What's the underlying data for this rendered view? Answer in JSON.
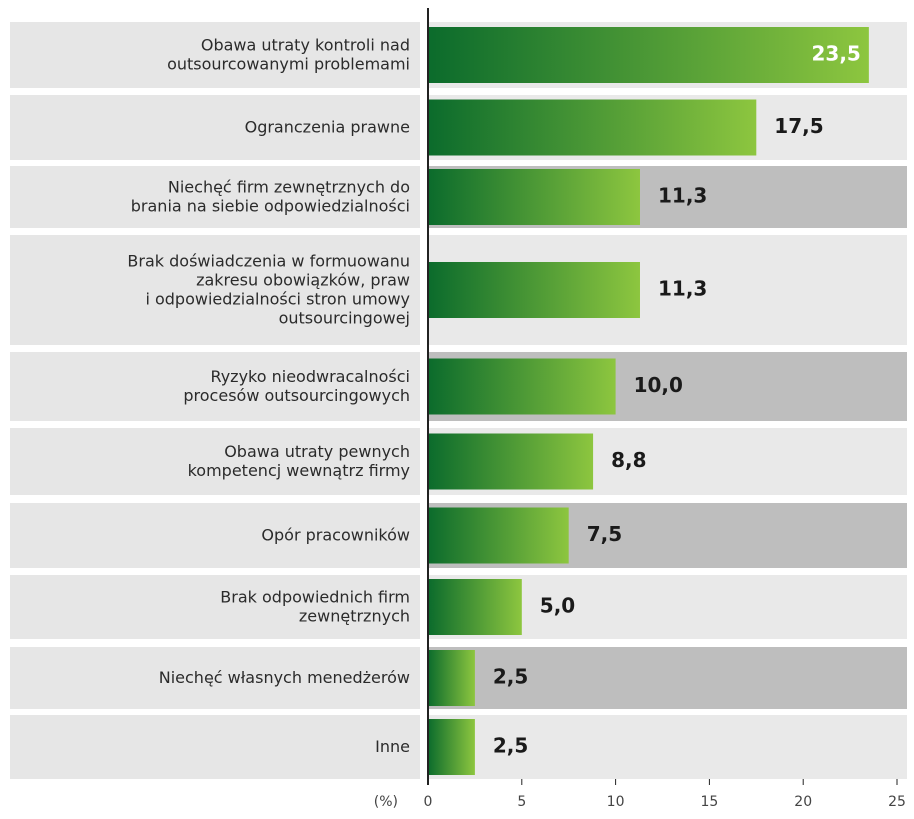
{
  "chart_data": {
    "type": "bar",
    "orientation": "horizontal",
    "x_label": "(%)",
    "categories": [
      [
        "Obawa utraty kontroli nad",
        "outsourcowanymi problemami"
      ],
      [
        "Ogranczenia prawne"
      ],
      [
        "Niechęć firm zewnętrznych do",
        "brania na siebie odpowiedzialności"
      ],
      [
        "Brak doświadczenia w formuowanu",
        "zakresu obowiązków, praw",
        "i odpowiedzialności stron umowy",
        "outsourcingowej"
      ],
      [
        "Ryzyko nieodwracalności",
        "procesów outsourcingowych"
      ],
      [
        "Obawa utraty pewnych",
        "kompetencj wewnątrz firmy"
      ],
      [
        "Opór pracowników"
      ],
      [
        "Brak odpowiednich firm",
        "zewnętrznych"
      ],
      [
        "Niechęć własnych menedżerów"
      ],
      [
        "Inne"
      ]
    ],
    "values": [
      23.5,
      17.5,
      11.3,
      11.3,
      10.0,
      8.8,
      7.5,
      5.0,
      2.5,
      2.5
    ],
    "value_labels": [
      "23,5",
      "17,5",
      "11,3",
      "11,3",
      "10,0",
      "8,8",
      "7,5",
      "5,0",
      "2,5",
      "2,5"
    ],
    "color_start": "#0b6b2c",
    "color_end": "#8dc63f",
    "xlim": [
      0,
      25
    ],
    "xticks": [
      0,
      5,
      10,
      15,
      20,
      25
    ]
  }
}
